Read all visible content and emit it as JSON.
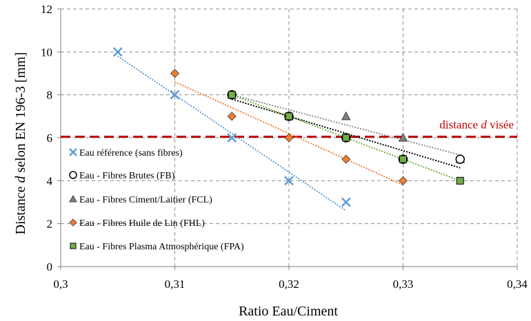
{
  "chart_data": {
    "type": "scatter",
    "xlabel": "Ratio Eau/Ciment",
    "ylabel_parts": [
      "Distance ",
      "d",
      " selon EN 196-3 [mm]"
    ],
    "xlim": [
      0.3,
      0.34
    ],
    "ylim": [
      0,
      12
    ],
    "x_ticks": [
      0.3,
      0.31,
      0.32,
      0.33,
      0.34
    ],
    "x_tick_labels": [
      "0,3",
      "0,31",
      "0,32",
      "0,33",
      "0,34"
    ],
    "y_ticks": [
      0,
      2,
      4,
      6,
      8,
      10,
      12
    ],
    "y_tick_labels": [
      "0",
      "2",
      "4",
      "6",
      "8",
      "10",
      "12"
    ],
    "grid": true,
    "target_line": {
      "y": 6.05,
      "label_parts": [
        "distance ",
        "d",
        " visée"
      ],
      "color": "#c00000"
    },
    "series": [
      {
        "name": "Eau référence (sans fibres)",
        "marker": "x",
        "color": "#5b9bd5",
        "points": [
          [
            0.305,
            10
          ],
          [
            0.31,
            8
          ],
          [
            0.315,
            6
          ],
          [
            0.32,
            4
          ],
          [
            0.325,
            3
          ]
        ]
      },
      {
        "name": "Eau - Fibres Brutes (FB)",
        "marker": "circle",
        "color": "#ffffff",
        "trend_color": "#000000",
        "points": [
          [
            0.315,
            8
          ],
          [
            0.32,
            7
          ],
          [
            0.325,
            6
          ],
          [
            0.33,
            5
          ],
          [
            0.335,
            5
          ]
        ]
      },
      {
        "name": "Eau - Fibres Ciment/Laitier (FCL)",
        "marker": "triangle",
        "color": "#808080",
        "trend_color": "#8c8c8c",
        "points": [
          [
            0.315,
            8
          ],
          [
            0.32,
            7
          ],
          [
            0.325,
            7
          ],
          [
            0.33,
            6
          ],
          [
            0.335,
            5
          ]
        ]
      },
      {
        "name": "Eau - Fibres Huile de Lin (FHL)",
        "marker": "diamond",
        "color": "#ed7d31",
        "points": [
          [
            0.31,
            9
          ],
          [
            0.315,
            7
          ],
          [
            0.32,
            6
          ],
          [
            0.325,
            5
          ],
          [
            0.33,
            4
          ]
        ]
      },
      {
        "name": "Eau - Fibres Plasma Atmosphérique (FPA)",
        "marker": "square",
        "color": "#70ad47",
        "points": [
          [
            0.315,
            8
          ],
          [
            0.32,
            7
          ],
          [
            0.325,
            6
          ],
          [
            0.33,
            5
          ],
          [
            0.335,
            4
          ]
        ]
      }
    ]
  }
}
